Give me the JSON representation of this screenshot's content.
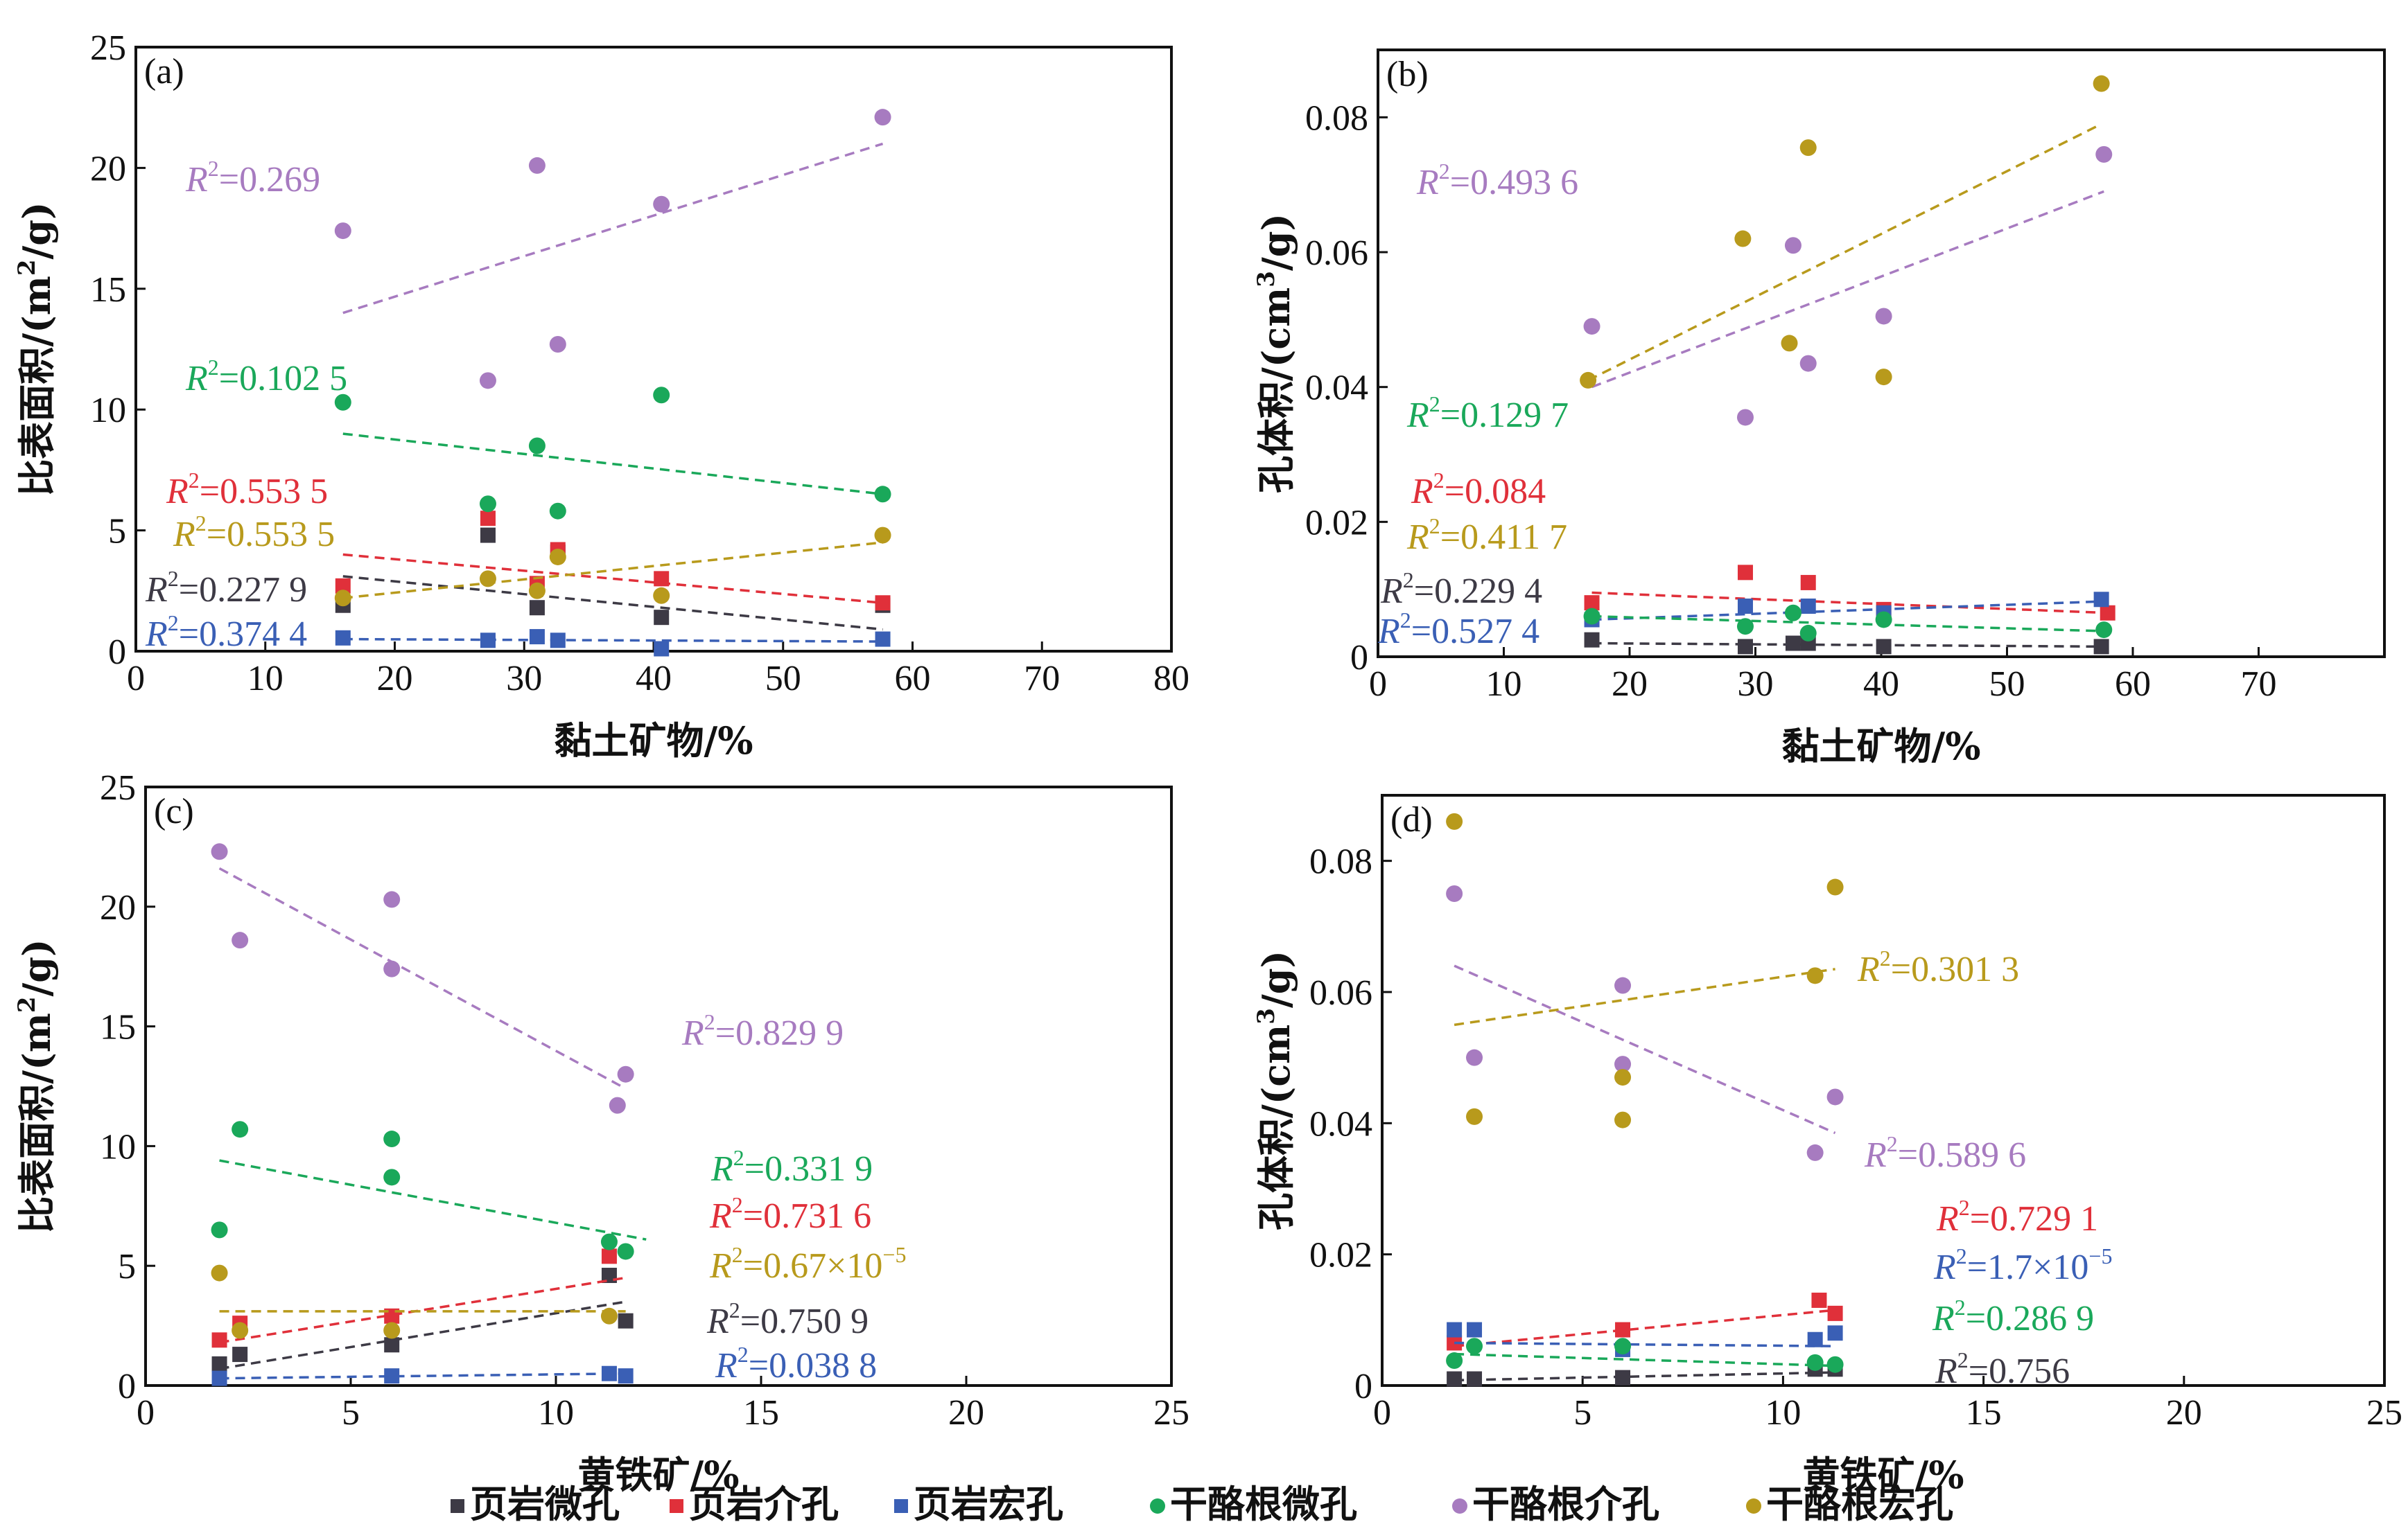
{
  "series_styles": [
    {
      "name": "页岩微孔",
      "color": "#3d3a45",
      "marker": "square"
    },
    {
      "name": "页岩介孔",
      "color": "#e0303a",
      "marker": "square"
    },
    {
      "name": "页岩宏孔",
      "color": "#3a5fb5",
      "marker": "square"
    },
    {
      "name": "干酪根微孔",
      "color": "#1aa85a",
      "marker": "circle"
    },
    {
      "name": "干酪根介孔",
      "color": "#a77bc0",
      "marker": "circle"
    },
    {
      "name": "干酪根宏孔",
      "color": "#b89a1c",
      "marker": "circle"
    }
  ],
  "legend": {
    "placement": "bottom",
    "items": [
      "页岩微孔",
      "页岩介孔",
      "页岩宏孔",
      "干酪根微孔",
      "干酪根介孔",
      "干酪根宏孔"
    ]
  },
  "chart_data": [
    {
      "type": "scatter",
      "panel_label": "(a)",
      "xlabel": "黏土矿物/%",
      "ylabel_main": "比表面积/(m",
      "ylabel_sup": "2",
      "ylabel_tail": "/g)",
      "xlim": [
        0,
        80
      ],
      "ylim": [
        0,
        25
      ],
      "xticks": [
        0,
        10,
        20,
        30,
        40,
        50,
        60,
        70,
        80
      ],
      "yticks": [
        0,
        5,
        10,
        15,
        20,
        25
      ],
      "series": [
        {
          "style": 0,
          "x": [
            16,
            27.2,
            31,
            32.6,
            40.6,
            57.7
          ],
          "y": [
            1.9,
            4.8,
            1.8,
            4.1,
            1.4,
            1.9
          ],
          "fit": [
            [
              16,
              3.1
            ],
            [
              57.7,
              0.9
            ]
          ],
          "r2": "0.227 9"
        },
        {
          "style": 1,
          "x": [
            16,
            27.2,
            31,
            32.6,
            40.6,
            57.7
          ],
          "y": [
            2.7,
            5.5,
            2.8,
            4.2,
            3.0,
            2.0
          ],
          "fit": [
            [
              16,
              4.0
            ],
            [
              57.7,
              2.0
            ]
          ],
          "r2": "0.553 5"
        },
        {
          "style": 2,
          "x": [
            16,
            27.2,
            31,
            32.6,
            40.6,
            57.7
          ],
          "y": [
            0.55,
            0.45,
            0.6,
            0.45,
            0.1,
            0.5
          ],
          "fit": [
            [
              16,
              0.5
            ],
            [
              57.7,
              0.4
            ]
          ],
          "r2": "0.374 4"
        },
        {
          "style": 3,
          "x": [
            16,
            27.2,
            31,
            32.6,
            40.6,
            57.7
          ],
          "y": [
            10.3,
            6.1,
            8.5,
            5.8,
            10.6,
            6.5
          ],
          "fit": [
            [
              16,
              9.0
            ],
            [
              57.7,
              6.5
            ]
          ],
          "r2": "0.102 5"
        },
        {
          "style": 4,
          "x": [
            16,
            27.2,
            31,
            32.6,
            40.6,
            57.7
          ],
          "y": [
            17.4,
            11.2,
            20.1,
            12.7,
            18.5,
            22.1
          ],
          "fit": [
            [
              16,
              14.0
            ],
            [
              57.7,
              21.0
            ]
          ],
          "r2": "0.269"
        },
        {
          "style": 5,
          "x": [
            16,
            27.2,
            31,
            32.6,
            40.6,
            57.7
          ],
          "y": [
            2.2,
            3.0,
            2.5,
            3.9,
            2.3,
            4.8
          ],
          "fit": [
            [
              16,
              2.2
            ],
            [
              57.7,
              4.5
            ]
          ],
          "r2": "0.553 5"
        }
      ]
    },
    {
      "type": "scatter",
      "panel_label": "(b)",
      "xlabel": "黏土矿物/%",
      "ylabel_main": "孔体积/(cm",
      "ylabel_sup": "3",
      "ylabel_tail": "/g)",
      "xlim": [
        0,
        80
      ],
      "ylim": [
        0,
        0.09
      ],
      "xticks": [
        0,
        10,
        20,
        30,
        40,
        50,
        60,
        70
      ],
      "yticks": [
        0,
        0.02,
        0.04,
        0.06,
        0.08
      ],
      "yticklabels": [
        "0",
        "0.02",
        "0.04",
        "0.06",
        "0.08"
      ],
      "series": [
        {
          "style": 0,
          "x": [
            17,
            29.2,
            33,
            34.2,
            40.2,
            57.5
          ],
          "y": [
            0.0025,
            0.0015,
            0.002,
            0.002,
            0.0015,
            0.0015
          ],
          "fit": [
            [
              17,
              0.002
            ],
            [
              58,
              0.0015
            ]
          ],
          "r2": "0.229 4"
        },
        {
          "style": 1,
          "x": [
            17,
            29.2,
            34.2,
            40.2,
            58
          ],
          "y": [
            0.008,
            0.0125,
            0.011,
            0.007,
            0.0065
          ],
          "fit": [
            [
              17,
              0.0095
            ],
            [
              58,
              0.0065
            ]
          ],
          "r2": "0.084"
        },
        {
          "style": 2,
          "x": [
            17,
            29.2,
            34.2,
            40.2,
            57.5
          ],
          "y": [
            0.0055,
            0.0075,
            0.0075,
            0.0065,
            0.0085
          ],
          "fit": [
            [
              17,
              0.0055
            ],
            [
              57.5,
              0.0082
            ]
          ],
          "r2": "0.527 4"
        },
        {
          "style": 3,
          "x": [
            17,
            29.2,
            33,
            34.2,
            40.2,
            57.7
          ],
          "y": [
            0.006,
            0.0045,
            0.0065,
            0.0035,
            0.0055,
            0.004
          ],
          "fit": [
            [
              17,
              0.006
            ],
            [
              57.7,
              0.0038
            ]
          ],
          "r2": "0.129 7"
        },
        {
          "style": 4,
          "x": [
            17,
            29.2,
            33,
            34.2,
            40.2,
            57.7
          ],
          "y": [
            0.049,
            0.0355,
            0.061,
            0.0435,
            0.0505,
            0.0745
          ],
          "fit": [
            [
              17,
              0.04
            ],
            [
              57.7,
              0.069
            ]
          ],
          "r2": "0.493 6"
        },
        {
          "style": 5,
          "x": [
            16.7,
            29,
            32.7,
            34.2,
            40.2,
            57.5
          ],
          "y": [
            0.041,
            0.062,
            0.0465,
            0.0755,
            0.0415,
            0.085
          ],
          "fit": [
            [
              16.7,
              0.041
            ],
            [
              57.5,
              0.079
            ]
          ],
          "r2": "0.411 7"
        }
      ]
    },
    {
      "type": "scatter",
      "panel_label": "(c)",
      "xlabel": "黄铁矿/%",
      "ylabel_main": "比表面积/(m",
      "ylabel_sup": "2",
      "ylabel_tail": "/g)",
      "xlim": [
        0,
        25
      ],
      "ylim": [
        0,
        25
      ],
      "xticks": [
        0,
        5,
        10,
        15,
        20,
        25
      ],
      "yticks": [
        0,
        5,
        10,
        15,
        20,
        25
      ],
      "series": [
        {
          "style": 0,
          "x": [
            1.8,
            2.3,
            6,
            11.3,
            11.7
          ],
          "y": [
            0.9,
            1.3,
            1.7,
            4.6,
            2.7
          ],
          "fit": [
            [
              1.8,
              0.7
            ],
            [
              11.7,
              3.5
            ]
          ],
          "r2": "0.750 9"
        },
        {
          "style": 1,
          "x": [
            1.8,
            2.3,
            6,
            11.3
          ],
          "y": [
            1.9,
            2.6,
            2.9,
            5.4
          ],
          "fit": [
            [
              1.8,
              1.8
            ],
            [
              11.7,
              4.5
            ]
          ],
          "r2": "0.731 6"
        },
        {
          "style": 2,
          "x": [
            1.8,
            6,
            11.3,
            11.7
          ],
          "y": [
            0.3,
            0.4,
            0.5,
            0.4
          ],
          "fit": [
            [
              1.8,
              0.3
            ],
            [
              11.7,
              0.5
            ]
          ],
          "r2": "0.038 8"
        },
        {
          "style": 3,
          "x": [
            1.8,
            2.3,
            6,
            6,
            11.3,
            11.7
          ],
          "y": [
            6.5,
            10.7,
            10.3,
            8.7,
            6.0,
            5.6
          ],
          "fit": [
            [
              1.8,
              9.4
            ],
            [
              12.2,
              6.1
            ]
          ],
          "r2": "0.331 9"
        },
        {
          "style": 4,
          "x": [
            1.8,
            2.3,
            6,
            6,
            11.5,
            11.7
          ],
          "y": [
            22.3,
            18.6,
            20.3,
            17.4,
            11.7,
            13.0
          ],
          "fit": [
            [
              1.8,
              21.6
            ],
            [
              11.7,
              12.4
            ]
          ],
          "r2": "0.829 9"
        },
        {
          "style": 5,
          "x": [
            1.8,
            2.3,
            6,
            11.3
          ],
          "y": [
            4.7,
            2.3,
            2.3,
            2.9
          ],
          "fit": [
            [
              1.8,
              3.1
            ],
            [
              11.7,
              3.1
            ]
          ],
          "r2_main": "0.67×10",
          "r2_exp": "−5"
        }
      ]
    },
    {
      "type": "scatter",
      "panel_label": "(d)",
      "xlabel": "黄铁矿/%",
      "ylabel_main": "孔体积/(cm",
      "ylabel_sup": "3",
      "ylabel_tail": "/g)",
      "xlim": [
        0,
        25
      ],
      "ylim": [
        0,
        0.09
      ],
      "xticks": [
        0,
        5,
        10,
        15,
        20,
        25
      ],
      "yticks": [
        0,
        0.02,
        0.04,
        0.06,
        0.08
      ],
      "yticklabels": [
        "0",
        "0.02",
        "0.04",
        "0.06",
        "0.08"
      ],
      "series": [
        {
          "style": 0,
          "x": [
            1.8,
            2.3,
            6,
            10.8,
            11.3
          ],
          "y": [
            0.001,
            0.001,
            0.0012,
            0.0025,
            0.0025
          ],
          "fit": [
            [
              1.8,
              0.0008
            ],
            [
              11.3,
              0.002
            ]
          ],
          "r2": "0.756"
        },
        {
          "style": 1,
          "x": [
            1.8,
            6,
            10.9,
            11.3
          ],
          "y": [
            0.0065,
            0.0085,
            0.013,
            0.011
          ],
          "fit": [
            [
              1.8,
              0.006
            ],
            [
              11.3,
              0.0115
            ]
          ],
          "r2": "0.729 1"
        },
        {
          "style": 2,
          "x": [
            1.8,
            2.3,
            6,
            10.8,
            11.3
          ],
          "y": [
            0.0085,
            0.0085,
            0.0055,
            0.007,
            0.008
          ],
          "fit": [
            [
              1.8,
              0.0065
            ],
            [
              11.3,
              0.006
            ]
          ],
          "r2_main": "1.7×10",
          "r2_exp": "−5"
        },
        {
          "style": 3,
          "x": [
            1.8,
            2.3,
            6,
            10.8,
            11.3
          ],
          "y": [
            0.0038,
            0.006,
            0.006,
            0.0035,
            0.0032
          ],
          "fit": [
            [
              1.8,
              0.0048
            ],
            [
              11.3,
              0.003
            ]
          ],
          "r2": "0.286 9"
        },
        {
          "style": 4,
          "x": [
            1.8,
            2.3,
            6,
            6,
            10.8,
            11.3
          ],
          "y": [
            0.075,
            0.05,
            0.061,
            0.049,
            0.0355,
            0.044
          ],
          "fit": [
            [
              1.8,
              0.064
            ],
            [
              11.3,
              0.0385
            ]
          ],
          "r2": "0.589 6"
        },
        {
          "style": 5,
          "x": [
            1.8,
            2.3,
            6,
            6,
            10.8,
            11.3
          ],
          "y": [
            0.086,
            0.041,
            0.047,
            0.0405,
            0.0625,
            0.076
          ],
          "fit": [
            [
              1.8,
              0.055
            ],
            [
              11.3,
              0.0635
            ]
          ],
          "r2": "0.301 3"
        }
      ]
    }
  ]
}
